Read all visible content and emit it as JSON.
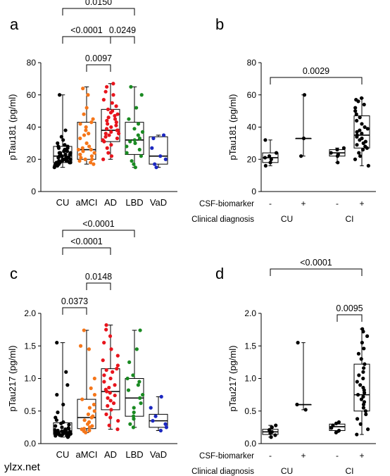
{
  "watermark": "ylzx.net",
  "colors": {
    "CU": "#000000",
    "aMCI": "#f5761a",
    "AD": "#e8141c",
    "LBD": "#1a8a22",
    "VaD": "#1c28c0",
    "watermark": "#b535c9"
  },
  "chart_data": [
    {
      "panel": "a",
      "type": "box",
      "ylabel": "pTau181 (pg/ml)",
      "ylim": [
        0,
        80
      ],
      "yticks": [
        0,
        20,
        40,
        60,
        80
      ],
      "categories": [
        "CU",
        "aMCI",
        "AD",
        "LBD",
        "VaD"
      ],
      "boxes": [
        {
          "min": 15,
          "q1": 18,
          "median": 22,
          "q3": 28,
          "max": 60
        },
        {
          "min": 17,
          "q1": 20,
          "median": 26,
          "q3": 43,
          "max": 65
        },
        {
          "min": 20,
          "q1": 31,
          "median": 38,
          "q3": 51,
          "max": 67
        },
        {
          "min": 15,
          "q1": 23,
          "median": 32,
          "q3": 43,
          "max": 65
        },
        {
          "min": 15,
          "q1": 17,
          "median": 22,
          "q3": 34,
          "max": 35
        }
      ],
      "points": [
        [
          15,
          16,
          16,
          17,
          17,
          17,
          18,
          18,
          18,
          18,
          19,
          19,
          19,
          19,
          20,
          20,
          20,
          20,
          21,
          21,
          21,
          21,
          22,
          22,
          22,
          22,
          23,
          23,
          23,
          24,
          24,
          24,
          25,
          25,
          26,
          26,
          27,
          27,
          28,
          28,
          29,
          30,
          32,
          34,
          38,
          60
        ],
        [
          17,
          18,
          19,
          20,
          20,
          21,
          22,
          23,
          24,
          25,
          26,
          26,
          27,
          28,
          30,
          33,
          35,
          36,
          38,
          40,
          42,
          43,
          45,
          48,
          52,
          60,
          64
        ],
        [
          20,
          22,
          24,
          27,
          29,
          31,
          32,
          33,
          34,
          35,
          36,
          36,
          37,
          38,
          38,
          39,
          40,
          41,
          42,
          43,
          44,
          45,
          46,
          47,
          48,
          49,
          50,
          51,
          53,
          55,
          57,
          60,
          62,
          65,
          67
        ],
        [
          15,
          17,
          19,
          22,
          24,
          26,
          28,
          30,
          31,
          32,
          33,
          35,
          37,
          39,
          42,
          45,
          52,
          60,
          65
        ],
        [
          15,
          17,
          20,
          22,
          27,
          33,
          35
        ]
      ],
      "brackets": [
        {
          "from": 0,
          "to": 3,
          "label": "0.0150"
        },
        {
          "from": 0,
          "to": 2,
          "label": "<0.0001"
        },
        {
          "from": 2,
          "to": 3,
          "label": "0.0249"
        },
        {
          "from": 1,
          "to": 2,
          "label": "0.0097"
        }
      ]
    },
    {
      "panel": "b",
      "type": "box",
      "ylabel": "pTau181 (pg/ml)",
      "ylim": [
        0,
        80
      ],
      "yticks": [
        0,
        20,
        40,
        60,
        80
      ],
      "categories": [
        "-",
        "+",
        "-",
        "+"
      ],
      "row_labels": [
        "CSF-biomarker",
        "Clinical diagnosis"
      ],
      "groups": [
        "CU",
        "CI"
      ],
      "boxes": [
        {
          "min": 16,
          "q1": 18,
          "median": 21,
          "q3": 24,
          "max": 32
        },
        {
          "min": 22,
          "q1": 33,
          "median": 33,
          "q3": 33,
          "max": 60
        },
        {
          "min": 18,
          "q1": 22,
          "median": 24,
          "q3": 26,
          "max": 27
        },
        {
          "min": 16,
          "q1": 27,
          "median": 35,
          "q3": 47,
          "max": 58
        }
      ],
      "points": [
        [
          16,
          18,
          20,
          21,
          22,
          24,
          32
        ],
        [
          22,
          33,
          60
        ],
        [
          18,
          22,
          23,
          24,
          26,
          27
        ],
        [
          16,
          20,
          22,
          24,
          26,
          27,
          28,
          29,
          30,
          31,
          32,
          33,
          34,
          35,
          36,
          37,
          38,
          39,
          40,
          42,
          44,
          46,
          48,
          50,
          52,
          54,
          56,
          57,
          58
        ]
      ],
      "brackets": [
        {
          "from": 0,
          "to": 3,
          "label": "0.0029"
        }
      ]
    },
    {
      "panel": "c",
      "type": "box",
      "ylabel": "pTau217 (pg/ml)",
      "ylim": [
        0,
        2.0
      ],
      "yticks": [
        "0.0",
        "0.5",
        "1.0",
        "1.5",
        "2.0"
      ],
      "categories": [
        "CU",
        "aMCI",
        "AD",
        "LBD",
        "VaD"
      ],
      "boxes": [
        {
          "min": 0.1,
          "q1": 0.14,
          "median": 0.18,
          "q3": 0.32,
          "max": 1.55
        },
        {
          "min": 0.17,
          "q1": 0.23,
          "median": 0.4,
          "q3": 0.68,
          "max": 1.74
        },
        {
          "min": 0.22,
          "q1": 0.52,
          "median": 0.8,
          "q3": 1.15,
          "max": 1.82
        },
        {
          "min": 0.25,
          "q1": 0.42,
          "median": 0.7,
          "q3": 1.0,
          "max": 1.74
        },
        {
          "min": 0.2,
          "q1": 0.25,
          "median": 0.35,
          "q3": 0.45,
          "max": 0.72
        }
      ],
      "points": [
        [
          0.1,
          0.11,
          0.12,
          0.12,
          0.13,
          0.13,
          0.14,
          0.14,
          0.15,
          0.15,
          0.15,
          0.16,
          0.16,
          0.17,
          0.17,
          0.18,
          0.18,
          0.18,
          0.19,
          0.19,
          0.2,
          0.2,
          0.21,
          0.22,
          0.23,
          0.24,
          0.25,
          0.27,
          0.29,
          0.31,
          0.33,
          0.36,
          0.4,
          0.48,
          0.6,
          0.75,
          0.9,
          1.1,
          1.55
        ],
        [
          0.17,
          0.19,
          0.2,
          0.22,
          0.23,
          0.25,
          0.27,
          0.3,
          0.33,
          0.36,
          0.4,
          0.42,
          0.45,
          0.5,
          0.55,
          0.6,
          0.68,
          0.75,
          0.85,
          1.0,
          1.45,
          1.5,
          1.74
        ],
        [
          0.22,
          0.28,
          0.35,
          0.4,
          0.45,
          0.52,
          0.58,
          0.62,
          0.66,
          0.7,
          0.74,
          0.78,
          0.8,
          0.83,
          0.86,
          0.9,
          0.95,
          1.0,
          1.05,
          1.1,
          1.13,
          1.15,
          1.2,
          1.28,
          1.35,
          1.45,
          1.55,
          1.65,
          1.75,
          1.82
        ],
        [
          0.25,
          0.3,
          0.38,
          0.42,
          0.48,
          0.55,
          0.62,
          0.7,
          0.75,
          0.82,
          0.9,
          0.95,
          1.0,
          1.05,
          1.25,
          1.45,
          1.74
        ],
        [
          0.2,
          0.25,
          0.3,
          0.35,
          0.42,
          0.55,
          0.72
        ]
      ],
      "brackets": [
        {
          "from": 0,
          "to": 3,
          "label": "<0.0001"
        },
        {
          "from": 0,
          "to": 2,
          "label": "<0.0001"
        },
        {
          "from": 1,
          "to": 2,
          "label": "0.0148"
        },
        {
          "from": 0,
          "to": 1,
          "label": "0.0373"
        }
      ]
    },
    {
      "panel": "d",
      "type": "box",
      "ylabel": "pTau217 (pg/ml)",
      "ylim": [
        0,
        2.0
      ],
      "yticks": [
        "0.0",
        "0.5",
        "1.0",
        "1.5",
        "2.0"
      ],
      "categories": [
        "-",
        "+",
        "-",
        "+"
      ],
      "row_labels": [
        "CSF-biomarker",
        "Clinical diagnosis"
      ],
      "groups": [
        "CU",
        "CI"
      ],
      "boxes": [
        {
          "min": 0.1,
          "q1": 0.14,
          "median": 0.18,
          "q3": 0.22,
          "max": 0.28
        },
        {
          "min": 0.52,
          "q1": 0.6,
          "median": 0.6,
          "q3": 0.6,
          "max": 1.55
        },
        {
          "min": 0.17,
          "q1": 0.2,
          "median": 0.26,
          "q3": 0.3,
          "max": 0.33
        },
        {
          "min": 0.14,
          "q1": 0.5,
          "median": 0.75,
          "q3": 1.22,
          "max": 1.76
        }
      ],
      "points": [
        [
          0.1,
          0.13,
          0.16,
          0.18,
          0.21,
          0.25,
          0.28
        ],
        [
          0.52,
          0.6,
          1.55
        ],
        [
          0.17,
          0.2,
          0.24,
          0.28,
          0.31,
          0.33
        ],
        [
          0.14,
          0.22,
          0.3,
          0.38,
          0.45,
          0.5,
          0.55,
          0.6,
          0.64,
          0.68,
          0.72,
          0.75,
          0.78,
          0.82,
          0.86,
          0.9,
          0.95,
          1.0,
          1.05,
          1.1,
          1.16,
          1.22,
          1.3,
          1.38,
          1.46,
          1.55,
          1.65,
          1.72,
          1.76
        ]
      ],
      "brackets": [
        {
          "from": 0,
          "to": 3,
          "label": "<0.0001"
        },
        {
          "from": 2,
          "to": 3,
          "label": "0.0095"
        }
      ]
    }
  ]
}
